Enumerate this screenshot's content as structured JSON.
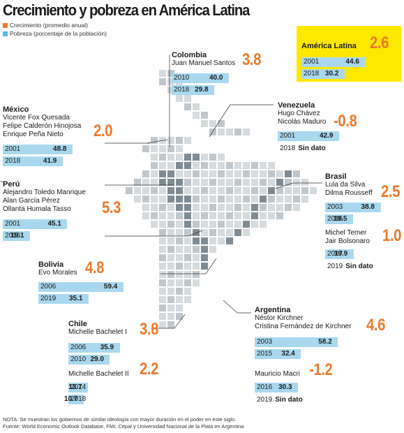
{
  "title": "Crecimiento y pobreza en América Latina",
  "legend": {
    "growth": {
      "label": "Crecimiento (promedio anual)",
      "color": "#ea7a2c"
    },
    "poverty": {
      "label": "Pobreza (porcentaje de la población)",
      "color": "#5bb8e0"
    }
  },
  "regional": {
    "name": "América Latina",
    "growth": "2.6",
    "rows": [
      {
        "year": "2001",
        "value": "44.6"
      },
      {
        "year": "2018",
        "value": "30.2"
      }
    ]
  },
  "mexico": {
    "name": "México",
    "leaders": [
      "Vicente Fox Quesada",
      "Felipe Calderón Hinojosa",
      "Enrique Peña Nieto"
    ],
    "growth": "2.0",
    "rows": [
      {
        "year": "2001",
        "value": "48.8"
      },
      {
        "year": "2018",
        "value": "41.9"
      }
    ]
  },
  "colombia": {
    "name": "Colombia",
    "leaders": [
      "Juan Manuel Santos"
    ],
    "growth": "3.8",
    "rows": [
      {
        "year": "2010",
        "value": "40.0"
      },
      {
        "year": "2018",
        "value": "29.8"
      }
    ]
  },
  "venezuela": {
    "name": "Venezuela",
    "leaders": [
      "Hugo Chávez",
      "Nicolás Maduro"
    ],
    "growth": "-0.8",
    "rows": [
      {
        "year": "2001",
        "value": "42.9"
      }
    ],
    "nodata": {
      "year": "2018",
      "label": "Sin dato"
    }
  },
  "peru": {
    "name": "Perú",
    "leaders": [
      "Alejandro Toledo Manrique",
      "Alan García Pérez",
      "Ollanta Humala Tasso"
    ],
    "growth": "5.3",
    "rows": [
      {
        "year": "2001",
        "value": "45.1"
      },
      {
        "year": "2016",
        "value": "19.1"
      }
    ]
  },
  "brasil": {
    "name": "Brasil",
    "leaders": [
      "Lula da Silva",
      "Dilma Rousseff"
    ],
    "growth": "2.5",
    "rows": [
      {
        "year": "2003",
        "value": "38.8"
      },
      {
        "year": "2016",
        "value": "19.5"
      }
    ]
  },
  "brasil2": {
    "leaders": [
      "Michel Temer",
      "Jair Bolsonaro"
    ],
    "growth": "1.0",
    "rows": [
      {
        "year": "2017",
        "value": "19.9"
      }
    ],
    "nodata": {
      "year": "2019",
      "label": "Sin dato"
    }
  },
  "bolivia": {
    "name": "Bolivia",
    "leaders": [
      "Evo Morales"
    ],
    "growth": "4.8",
    "rows": [
      {
        "year": "2006",
        "value": "59.4"
      },
      {
        "year": "2019",
        "value": "35.1"
      }
    ]
  },
  "chile": {
    "name": "Chile",
    "leaders": [
      "Michelle Bachelet I"
    ],
    "growth": "3.8",
    "rows": [
      {
        "year": "2006",
        "value": "35.9"
      },
      {
        "year": "2010",
        "value": "29.0"
      }
    ]
  },
  "chile2": {
    "leaders": [
      "Michelle Bachelet II"
    ],
    "growth": "2.2",
    "rows": [
      {
        "year": "2014",
        "value": "13.7"
      },
      {
        "year": "2018",
        "value": "10.7"
      }
    ]
  },
  "argentina": {
    "name": "Argentina",
    "leaders": [
      "Néstor Kirchner",
      "Cristina Fernández de Kirchner"
    ],
    "growth": "4.6",
    "rows": [
      {
        "year": "2003",
        "value": "58.2"
      },
      {
        "year": "2015",
        "value": "32.4"
      }
    ]
  },
  "argentina2": {
    "leaders": [
      "Mauricio Macri"
    ],
    "growth": "-1.2",
    "rows": [
      {
        "year": "2016",
        "value": "30.3"
      }
    ],
    "nodata": {
      "year": "2019",
      "label": "Sin dato"
    }
  },
  "footer": {
    "note": "NOTA: Se muestran los gobiernos de similar ideología con mayor duración en el poder en este siglo.",
    "source": "Fuente: World Economic Outlook Database, FMI; Cepal y Universidad Nacional de la Plata en Argentina"
  },
  "chart_data": {
    "type": "bar",
    "title": "Crecimiento y pobreza en América Latina",
    "unit": "Pobreza (porcentaje de la población)",
    "series": [
      {
        "name": "América Latina",
        "growth": 2.6,
        "poverty": [
          {
            "year": 2001,
            "value": 44.6
          },
          {
            "year": 2018,
            "value": 30.2
          }
        ]
      },
      {
        "name": "México",
        "growth": 2.0,
        "poverty": [
          {
            "year": 2001,
            "value": 48.8
          },
          {
            "year": 2018,
            "value": 41.9
          }
        ]
      },
      {
        "name": "Colombia",
        "growth": 3.8,
        "poverty": [
          {
            "year": 2010,
            "value": 40.0
          },
          {
            "year": 2018,
            "value": 29.8
          }
        ]
      },
      {
        "name": "Venezuela",
        "growth": -0.8,
        "poverty": [
          {
            "year": 2001,
            "value": 42.9
          },
          {
            "year": 2018,
            "value": null
          }
        ]
      },
      {
        "name": "Perú",
        "growth": 5.3,
        "poverty": [
          {
            "year": 2001,
            "value": 45.1
          },
          {
            "year": 2016,
            "value": 19.1
          }
        ]
      },
      {
        "name": "Brasil (Lula da Silva, Dilma Rousseff)",
        "growth": 2.5,
        "poverty": [
          {
            "year": 2003,
            "value": 38.8
          },
          {
            "year": 2016,
            "value": 19.5
          }
        ]
      },
      {
        "name": "Brasil (Michel Temer, Jair Bolsonaro)",
        "growth": 1.0,
        "poverty": [
          {
            "year": 2017,
            "value": 19.9
          },
          {
            "year": 2019,
            "value": null
          }
        ]
      },
      {
        "name": "Bolivia",
        "growth": 4.8,
        "poverty": [
          {
            "year": 2006,
            "value": 59.4
          },
          {
            "year": 2019,
            "value": 35.1
          }
        ]
      },
      {
        "name": "Chile (Michelle Bachelet I)",
        "growth": 3.8,
        "poverty": [
          {
            "year": 2006,
            "value": 35.9
          },
          {
            "year": 2010,
            "value": 29.0
          }
        ]
      },
      {
        "name": "Chile (Michelle Bachelet II)",
        "growth": 2.2,
        "poverty": [
          {
            "year": 2014,
            "value": 13.7
          },
          {
            "year": 2018,
            "value": 10.7
          }
        ]
      },
      {
        "name": "Argentina (Kirchner)",
        "growth": 4.6,
        "poverty": [
          {
            "year": 2003,
            "value": 58.2
          },
          {
            "year": 2015,
            "value": 32.4
          }
        ]
      },
      {
        "name": "Argentina (Mauricio Macri)",
        "growth": -1.2,
        "poverty": [
          {
            "year": 2016,
            "value": 30.3
          },
          {
            "year": 2019,
            "value": null
          }
        ]
      }
    ]
  }
}
